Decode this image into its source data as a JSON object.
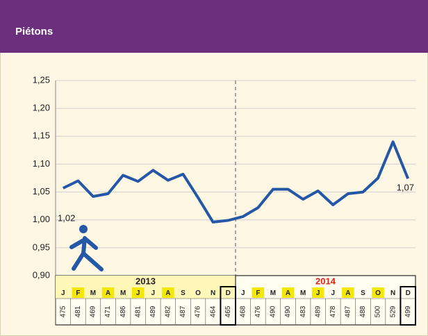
{
  "chart_data": {
    "type": "line",
    "title": "Piétons",
    "categories": [
      "J",
      "F",
      "M",
      "A",
      "M",
      "J",
      "J",
      "A",
      "S",
      "O",
      "N",
      "D",
      "J",
      "F",
      "M",
      "A",
      "M",
      "J",
      "J",
      "A",
      "S",
      "O",
      "N",
      "D"
    ],
    "series": [
      {
        "color": "#2457a6",
        "values": [
          1.057,
          1.07,
          1.042,
          1.047,
          1.08,
          1.069,
          1.089,
          1.071,
          1.082,
          1.04,
          0.996,
          0.999,
          1.006,
          1.022,
          1.055,
          1.055,
          1.037,
          1.052,
          1.027,
          1.047,
          1.05,
          1.075,
          1.14,
          1.074
        ]
      }
    ],
    "ylim": [
      0.9,
      1.25
    ],
    "yticks": [
      {
        "value": 0.9,
        "label": "0,90"
      },
      {
        "value": 0.95,
        "label": "0,95"
      },
      {
        "value": 1.0,
        "label": "1,00"
      },
      {
        "value": 1.05,
        "label": "1,05"
      },
      {
        "value": 1.1,
        "label": "1,10"
      },
      {
        "value": 1.15,
        "label": "1,15"
      },
      {
        "value": 1.2,
        "label": "1,20"
      },
      {
        "value": 1.25,
        "label": "1,25"
      }
    ],
    "grid": true,
    "annotations": [
      "1,02",
      "1,07"
    ],
    "years": [
      "2013",
      "2014"
    ],
    "counts": [
      475,
      481,
      469,
      471,
      486,
      481,
      489,
      482,
      487,
      476,
      464,
      465,
      468,
      476,
      490,
      490,
      483,
      489,
      478,
      487,
      488,
      500,
      529,
      499
    ]
  }
}
